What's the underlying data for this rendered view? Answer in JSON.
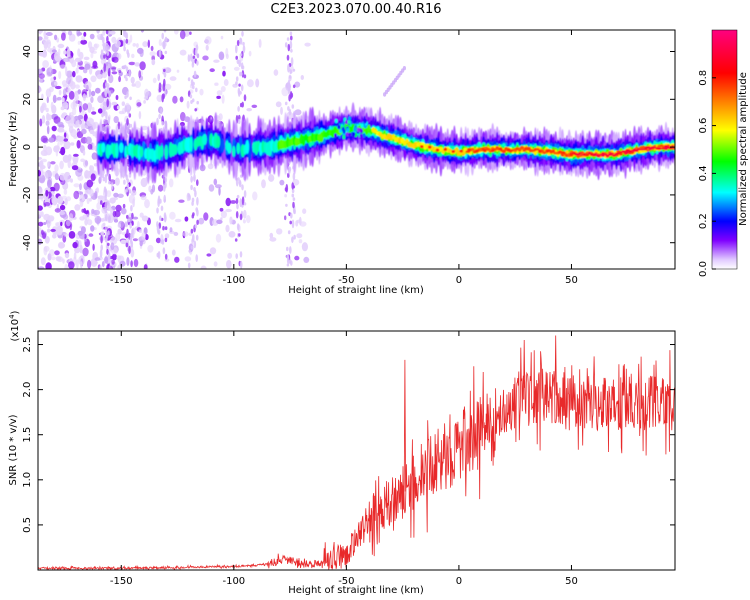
{
  "title": "C2E3.2023.070.00.40.R16",
  "colors": {
    "snr_line": "#e8292a",
    "frame": "#000000"
  },
  "chart_data": [
    {
      "type": "heatmap",
      "title": "C2E3.2023.070.00.40.R16",
      "xlabel": "Height of straight line (km)",
      "ylabel": "Frequency (Hz)",
      "xlim": [
        -187,
        96
      ],
      "ylim": [
        -51,
        49
      ],
      "xticks": [
        -150,
        -100,
        -50,
        0,
        50
      ],
      "yticks": [
        -40,
        -20,
        0,
        20,
        40
      ],
      "colorbar": {
        "label": "Normalized spectral amplitude",
        "range": [
          0.0,
          1.0
        ],
        "ticks": [
          "0.0",
          "0.2",
          "0.4",
          "0.6",
          "0.8"
        ],
        "colormap": [
          "#ffffff",
          "#e0c8ff",
          "#7f00ff",
          "#0000ff",
          "#00ffff",
          "#00ff00",
          "#ffff00",
          "#ff8000",
          "#ff0000",
          "#ff007f"
        ]
      },
      "ridge_center_hz": [
        {
          "x": -150,
          "y": -1
        },
        {
          "x": -135,
          "y": -3
        },
        {
          "x": -120,
          "y": 1
        },
        {
          "x": -110,
          "y": 3
        },
        {
          "x": -100,
          "y": -1
        },
        {
          "x": -85,
          "y": 0
        },
        {
          "x": -70,
          "y": 3
        },
        {
          "x": -60,
          "y": 5
        },
        {
          "x": -50,
          "y": 8
        },
        {
          "x": -40,
          "y": 7
        },
        {
          "x": -30,
          "y": 4
        },
        {
          "x": -20,
          "y": 1
        },
        {
          "x": -10,
          "y": -1
        },
        {
          "x": 0,
          "y": -2
        },
        {
          "x": 10,
          "y": -1
        },
        {
          "x": 20,
          "y": -1
        },
        {
          "x": 30,
          "y": -1
        },
        {
          "x": 40,
          "y": -2
        },
        {
          "x": 50,
          "y": -3
        },
        {
          "x": 60,
          "y": -3
        },
        {
          "x": 70,
          "y": -3
        },
        {
          "x": 80,
          "y": -1
        },
        {
          "x": 90,
          "y": 0
        },
        {
          "x": 96,
          "y": 0
        }
      ],
      "ridge_peak_amplitude": [
        {
          "x": -150,
          "y": 0.35
        },
        {
          "x": -120,
          "y": 0.4
        },
        {
          "x": -100,
          "y": 0.4
        },
        {
          "x": -80,
          "y": 0.45
        },
        {
          "x": -60,
          "y": 0.5
        },
        {
          "x": -50,
          "y": 0.55
        },
        {
          "x": -30,
          "y": 0.6
        },
        {
          "x": -10,
          "y": 0.65
        },
        {
          "x": 10,
          "y": 0.75
        },
        {
          "x": 30,
          "y": 0.8
        },
        {
          "x": 50,
          "y": 0.85
        },
        {
          "x": 70,
          "y": 0.9
        },
        {
          "x": 90,
          "y": 0.95
        }
      ]
    },
    {
      "type": "line",
      "xlabel": "Height of straight line (km)",
      "ylabel": "SNR (10 * v/v)",
      "y_multiplier": "(x10",
      "y_multiplier_exp": "4",
      "y_multiplier_close": ")",
      "xlim": [
        -187,
        96
      ],
      "ylim": [
        0,
        2.65
      ],
      "xticks": [
        -150,
        -100,
        -50,
        0,
        50
      ],
      "yticks": [
        0.5,
        1.0,
        1.5,
        2.0,
        2.5
      ],
      "ytick_labels": [
        "0.5",
        "1.0",
        "1.5",
        "2.0",
        "2.5"
      ],
      "series": [
        {
          "values": [
            {
              "x": -187,
              "y": 0.02
            },
            {
              "x": -150,
              "y": 0.02
            },
            {
              "x": -120,
              "y": 0.03
            },
            {
              "x": -100,
              "y": 0.04
            },
            {
              "x": -85,
              "y": 0.06
            },
            {
              "x": -78,
              "y": 0.12
            },
            {
              "x": -70,
              "y": 0.07
            },
            {
              "x": -60,
              "y": 0.06
            },
            {
              "x": -55,
              "y": 0.1
            },
            {
              "x": -50,
              "y": 0.18
            },
            {
              "x": -45,
              "y": 0.35
            },
            {
              "x": -40,
              "y": 0.55
            },
            {
              "x": -30,
              "y": 0.75
            },
            {
              "x": -20,
              "y": 0.95
            },
            {
              "x": -10,
              "y": 1.2
            },
            {
              "x": 0,
              "y": 1.35
            },
            {
              "x": 10,
              "y": 1.6
            },
            {
              "x": 20,
              "y": 1.8
            },
            {
              "x": 30,
              "y": 1.9
            },
            {
              "x": 40,
              "y": 1.95
            },
            {
              "x": 50,
              "y": 1.9
            },
            {
              "x": 60,
              "y": 1.85
            },
            {
              "x": 70,
              "y": 1.85
            },
            {
              "x": 80,
              "y": 1.85
            },
            {
              "x": 90,
              "y": 1.85
            },
            {
              "x": 96,
              "y": 1.85
            }
          ]
        }
      ],
      "annotations": [
        {
          "x": -24,
          "y": 2.33
        },
        {
          "x": 29,
          "y": 2.55
        },
        {
          "x": 43,
          "y": 2.6
        }
      ]
    }
  ]
}
